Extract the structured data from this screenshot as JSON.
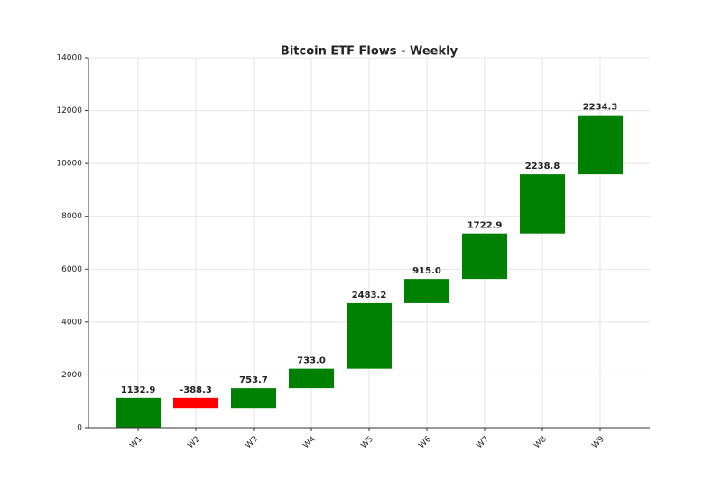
{
  "chart_data": {
    "type": "waterfall",
    "title": "Bitcoin ETF Flows - Weekly",
    "categories": [
      "W1",
      "W2",
      "W3",
      "W4",
      "W5",
      "W6",
      "W7",
      "W8",
      "W9"
    ],
    "values": [
      1132.9,
      -388.3,
      753.7,
      733.0,
      2483.2,
      915.0,
      1722.9,
      2238.8,
      2234.3
    ],
    "value_labels": [
      "1132.9",
      "-388.3",
      "753.7",
      "733.0",
      "2483.2",
      "915.0",
      "1722.9",
      "2238.8",
      "2234.3"
    ],
    "increase_color": "#008000",
    "decrease_color": "#ff0000",
    "ylim": [
      0,
      14000
    ],
    "yticks": [
      0,
      2000,
      4000,
      6000,
      8000,
      10000,
      12000,
      14000
    ],
    "grid": true
  }
}
